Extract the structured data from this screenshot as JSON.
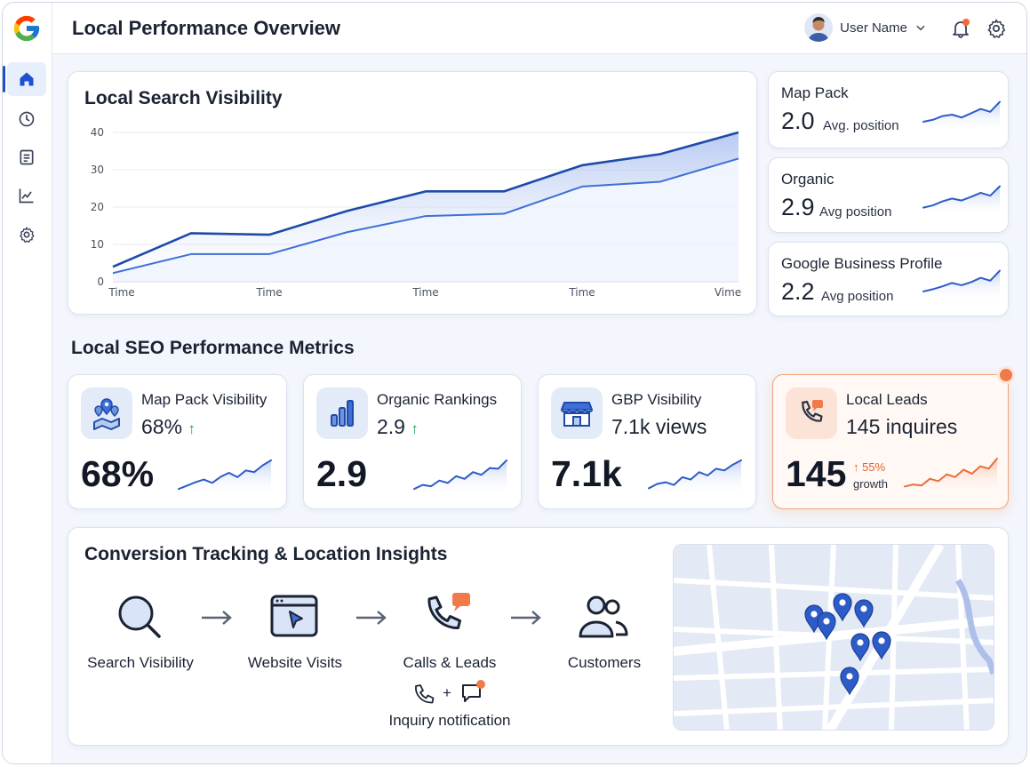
{
  "header": {
    "title": "Local Performance Overview",
    "user_name": "User Name"
  },
  "sidebar": {
    "items": [
      "home-icon",
      "clock-icon",
      "document-icon",
      "analytics-icon",
      "gear-icon"
    ],
    "active": "home-icon"
  },
  "visibility_chart": {
    "title": "Local Search Visibility",
    "chart_data": {
      "type": "line",
      "title": "Local Search Visibility",
      "x_tick_labels": [
        "Time",
        "Time",
        "Time",
        "Time",
        "Vime"
      ],
      "ylim": [
        0,
        40
      ],
      "y_ticks": [
        "0",
        "10",
        "20",
        "30",
        "40"
      ],
      "series": [
        {
          "values": [
            4,
            13,
            12.6,
            19,
            24.2,
            24.2,
            31.2,
            34.2,
            40
          ],
          "color": "#1f4ba8"
        },
        {
          "values": [
            2.3,
            7.4,
            7.4,
            13.3,
            17.6,
            18.2,
            25.5,
            26.8,
            33
          ],
          "color": "#3f6fd6"
        }
      ],
      "grid": true
    }
  },
  "side_cards": [
    {
      "title": "Map Pack",
      "value": "2.0",
      "sub": "Avg. position"
    },
    {
      "title": "Organic",
      "value": "2.9",
      "sub": "Avg position"
    },
    {
      "title": "Google Business Profile",
      "value": "2.2",
      "sub": "Avg position"
    }
  ],
  "metrics_section": {
    "title": "Local SEO Performance Metrics"
  },
  "metrics": [
    {
      "title": "Map Pack Visibility",
      "sub": "68%",
      "arrow": "↑",
      "big": "68%",
      "icon": "map-pins-icon"
    },
    {
      "title": "Organic Rankings",
      "sub": "2.9",
      "arrow": "↑",
      "big": "2.9",
      "icon": "bar-chart-icon"
    },
    {
      "title": "GBP Visibility",
      "sub": "7.1k views",
      "arrow": "",
      "big": "7.1k",
      "icon": "storefront-icon"
    },
    {
      "title": "Local Leads",
      "sub": "145 inquires",
      "arrow": "",
      "big": "145",
      "growth_pct": "↑ 55%",
      "growth_label": "growth",
      "icon": "phone-chat-icon"
    }
  ],
  "conversion": {
    "title": "Conversion Tracking & Location Insights",
    "steps": [
      "Search Visibility",
      "Website Visits",
      "Calls & Leads",
      "Customers"
    ],
    "notification": "Inquiry notification",
    "plus": "+"
  },
  "colors": {
    "accent": "#1f4fd1",
    "leads_accent": "#f07a4a",
    "positive": "#1e9e5a"
  }
}
